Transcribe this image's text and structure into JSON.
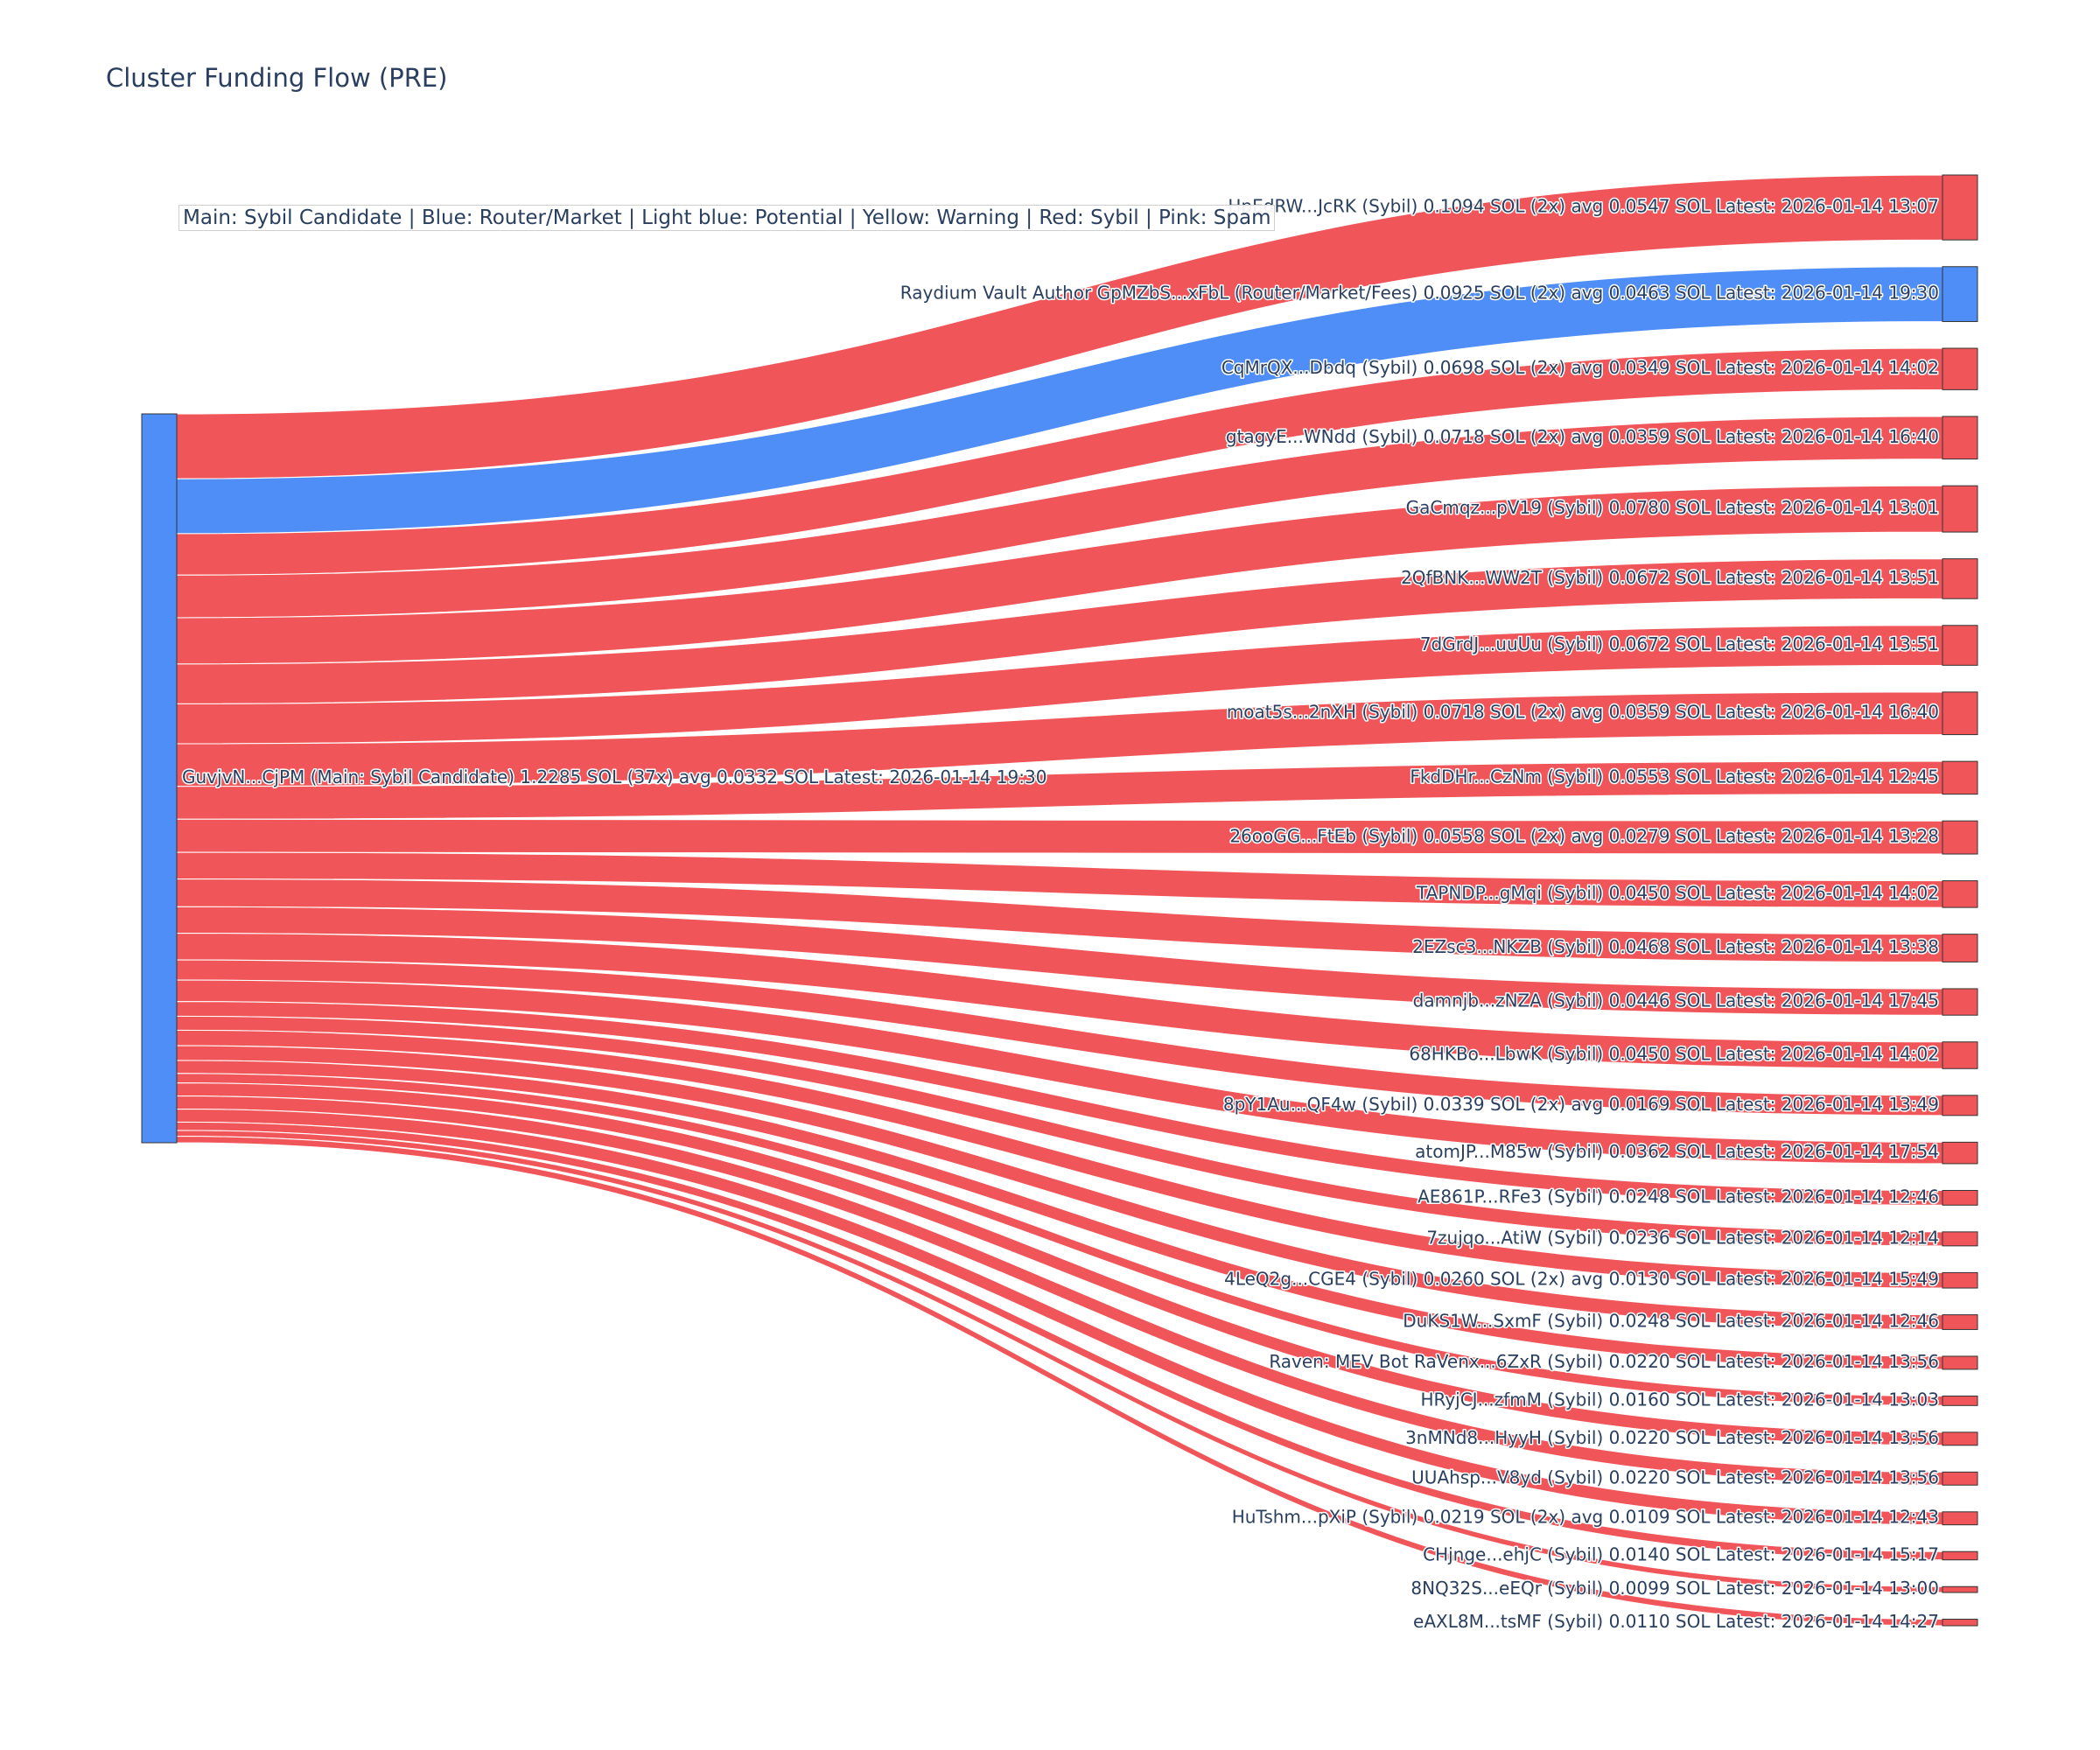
{
  "chart_data": {
    "type": "sankey",
    "title": "Cluster Funding Flow (PRE)",
    "legend_note": "Main: Sybil Candidate  |  Blue: Router/Market | Light blue: Potential | Yellow: Warning | Red: Sybil | Pink: Spam",
    "colors": {
      "main": "#4f8ef7",
      "router": "#4f8ef7",
      "sybil": "#f05659",
      "node_outline": "#333333"
    },
    "source": {
      "label": "GuvjvN...CjPM (Main: Sybil Candidate) 1.2285 SOL (37x) avg 0.0332 SOL Latest: 2026-01-14 19:30",
      "category": "main",
      "value": 1.2285
    },
    "targets": [
      {
        "label": "HpEdRW...JcRK (Sybil) 0.1094 SOL (2x) avg 0.0547 SOL Latest: 2026-01-14 13:07",
        "value": 0.1094,
        "category": "sybil"
      },
      {
        "label": "Raydium Vault Author GpMZbS...xFbL (Router/Market/Fees) 0.0925 SOL (2x) avg 0.0463 SOL Latest: 2026-01-14 19:30",
        "value": 0.0925,
        "category": "router"
      },
      {
        "label": "CqMrQX...Dbdq (Sybil) 0.0698 SOL (2x) avg 0.0349 SOL Latest: 2026-01-14 14:02",
        "value": 0.0698,
        "category": "sybil"
      },
      {
        "label": "gtagyE...WNdd (Sybil) 0.0718 SOL (2x) avg 0.0359 SOL Latest: 2026-01-14 16:40",
        "value": 0.0718,
        "category": "sybil"
      },
      {
        "label": "GaCmqz...pV19 (Sybil) 0.0780 SOL Latest: 2026-01-14 13:01",
        "value": 0.078,
        "category": "sybil"
      },
      {
        "label": "2QfBNK...WW2T (Sybil) 0.0672 SOL Latest: 2026-01-14 13:51",
        "value": 0.0672,
        "category": "sybil"
      },
      {
        "label": "7dGrdJ...uuUu (Sybil) 0.0672 SOL Latest: 2026-01-14 13:51",
        "value": 0.0672,
        "category": "sybil"
      },
      {
        "label": "moat5s...2nXH (Sybil) 0.0718 SOL (2x) avg 0.0359 SOL Latest: 2026-01-14 16:40",
        "value": 0.0718,
        "category": "sybil"
      },
      {
        "label": "FkdDHr...CzNm (Sybil) 0.0553 SOL Latest: 2026-01-14 12:45",
        "value": 0.0553,
        "category": "sybil"
      },
      {
        "label": "26ooGG...FtEb (Sybil) 0.0558 SOL (2x) avg 0.0279 SOL Latest: 2026-01-14 13:28",
        "value": 0.0558,
        "category": "sybil"
      },
      {
        "label": "TAPNDP...gMqi (Sybil) 0.0450 SOL Latest: 2026-01-14 14:02",
        "value": 0.045,
        "category": "sybil"
      },
      {
        "label": "2EZsc3...NKZB (Sybil) 0.0468 SOL Latest: 2026-01-14 13:38",
        "value": 0.0468,
        "category": "sybil"
      },
      {
        "label": "damnjb...zNZA (Sybil) 0.0446 SOL Latest: 2026-01-14 17:45",
        "value": 0.0446,
        "category": "sybil"
      },
      {
        "label": "68HKBo...LbwK (Sybil) 0.0450 SOL Latest: 2026-01-14 14:02",
        "value": 0.045,
        "category": "sybil"
      },
      {
        "label": "8pY1Au...QF4w (Sybil) 0.0339 SOL (2x) avg 0.0169 SOL Latest: 2026-01-14 13:49",
        "value": 0.0339,
        "category": "sybil"
      },
      {
        "label": "atomJP...M85w (Sybil) 0.0362 SOL Latest: 2026-01-14 17:54",
        "value": 0.0362,
        "category": "sybil"
      },
      {
        "label": "AE861P...RFe3 (Sybil) 0.0248 SOL Latest: 2026-01-14 12:46",
        "value": 0.0248,
        "category": "sybil"
      },
      {
        "label": "7zujqo...AtiW (Sybil) 0.0236 SOL Latest: 2026-01-14 12:14",
        "value": 0.0236,
        "category": "sybil"
      },
      {
        "label": "4LeQ2g...CGE4 (Sybil) 0.0260 SOL (2x) avg 0.0130 SOL Latest: 2026-01-14 15:49",
        "value": 0.026,
        "category": "sybil"
      },
      {
        "label": "DuKS1W...SxmF (Sybil) 0.0248 SOL Latest: 2026-01-14 12:46",
        "value": 0.0248,
        "category": "sybil"
      },
      {
        "label": "Raven: MEV Bot RaVenx...6ZxR (Sybil) 0.0220 SOL Latest: 2026-01-14 13:56",
        "value": 0.022,
        "category": "sybil"
      },
      {
        "label": "HRyjCJ...zfmM (Sybil) 0.0160 SOL Latest: 2026-01-14 13:03",
        "value": 0.016,
        "category": "sybil"
      },
      {
        "label": "3nMNd8...HyyH (Sybil) 0.0220 SOL Latest: 2026-01-14 13:56",
        "value": 0.022,
        "category": "sybil"
      },
      {
        "label": "UUAhsp...V8yd (Sybil) 0.0220 SOL Latest: 2026-01-14 13:56",
        "value": 0.022,
        "category": "sybil"
      },
      {
        "label": "HuTshm...pXiP (Sybil) 0.0219 SOL (2x) avg 0.0109 SOL Latest: 2026-01-14 12:43",
        "value": 0.0219,
        "category": "sybil"
      },
      {
        "label": "CHjnge...ehjC (Sybil) 0.0140 SOL Latest: 2026-01-14 15:17",
        "value": 0.014,
        "category": "sybil"
      },
      {
        "label": "8NQ32S...eEQr (Sybil) 0.0099 SOL Latest: 2026-01-14 13:00",
        "value": 0.0099,
        "category": "sybil"
      },
      {
        "label": "eAXL8M...tsMF (Sybil) 0.0110 SOL Latest: 2026-01-14 14:27",
        "value": 0.011,
        "category": "sybil"
      }
    ]
  }
}
